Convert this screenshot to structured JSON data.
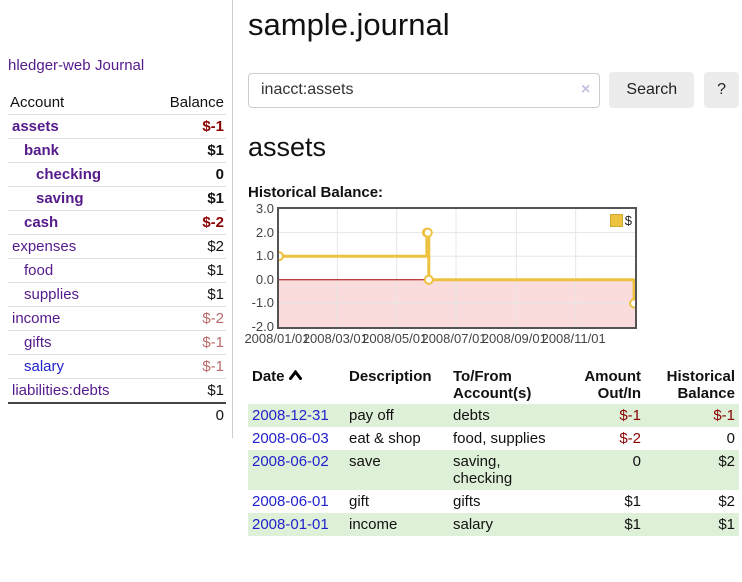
{
  "app": {
    "brand": "hledger-web"
  },
  "sidebar": {
    "nav_journal": "Journal",
    "accounts": {
      "headers": {
        "account": "Account",
        "balance": "Balance"
      },
      "rows": [
        {
          "name": "assets",
          "balance": "$-1"
        },
        {
          "name": "bank",
          "balance": "$1"
        },
        {
          "name": "checking",
          "balance": "0"
        },
        {
          "name": "saving",
          "balance": "$1"
        },
        {
          "name": "cash",
          "balance": "$-2"
        },
        {
          "name": "expenses",
          "balance": "$2"
        },
        {
          "name": "food",
          "balance": "$1"
        },
        {
          "name": "supplies",
          "balance": "$1"
        },
        {
          "name": "income",
          "balance": "$-2"
        },
        {
          "name": "gifts",
          "balance": "$-1"
        },
        {
          "name": "salary",
          "balance": "$-1"
        },
        {
          "name": "liabilities:debts",
          "balance": "$1"
        }
      ],
      "total": "0"
    }
  },
  "main": {
    "title": "sample.journal",
    "search": {
      "value": "inacct:assets",
      "clear": "×",
      "button": "Search",
      "help": "?"
    },
    "account_heading": "assets",
    "chart_label": "Historical Balance:"
  },
  "chart_data": {
    "type": "line",
    "title": "Historical Balance",
    "legend": [
      {
        "name": "$",
        "color": "#edc240"
      }
    ],
    "legend_position": "top-right",
    "grid": true,
    "step": true,
    "series": [
      {
        "name": "$",
        "color": "#edc240",
        "points": [
          {
            "date": "2008-01-01",
            "day": 0,
            "value": 1
          },
          {
            "date": "2008-06-01",
            "day": 152,
            "value": 2
          },
          {
            "date": "2008-06-02",
            "day": 153,
            "value": 2
          },
          {
            "date": "2008-06-03",
            "day": 154,
            "value": 0
          },
          {
            "date": "2008-12-31",
            "day": 365,
            "value": -1
          }
        ]
      }
    ],
    "x_ticks": [
      {
        "label": "2008/01/01",
        "day": 0
      },
      {
        "label": "2008/03/01",
        "day": 60
      },
      {
        "label": "2008/05/01",
        "day": 121
      },
      {
        "label": "2008/07/01",
        "day": 182
      },
      {
        "label": "2008/09/01",
        "day": 244
      },
      {
        "label": "2008/11/01",
        "day": 305
      }
    ],
    "x_domain_days": 366,
    "y_ticks": [
      "3.0",
      "2.0",
      "1.0",
      "0.0",
      "-1.0",
      "-2.0"
    ],
    "ylim": [
      -2,
      3
    ],
    "colors": {
      "gridline": "#e6e6e6",
      "border": "#545454",
      "zero_line": "#aa0000",
      "negative_region": "#fbdcdc",
      "marker_fill": "#ffffff"
    }
  },
  "register": {
    "headers": {
      "date": "Date",
      "description": "Description",
      "accounts": "To/From Account(s)",
      "amount": "Amount Out/In",
      "balance": "Historical Balance"
    },
    "rows": [
      {
        "date": "2008-12-31",
        "description": "pay off",
        "accounts": "debts",
        "amount": "$-1",
        "balance": "$-1"
      },
      {
        "date": "2008-06-03",
        "description": "eat & shop",
        "accounts": "food, supplies",
        "amount": "$-2",
        "balance": "0"
      },
      {
        "date": "2008-06-02",
        "description": "save",
        "accounts": "saving, checking",
        "amount": "0",
        "balance": "$2"
      },
      {
        "date": "2008-06-01",
        "description": "gift",
        "accounts": "gifts",
        "amount": "$1",
        "balance": "$2"
      },
      {
        "date": "2008-01-01",
        "description": "income",
        "accounts": "salary",
        "amount": "$1",
        "balance": "$1"
      }
    ]
  }
}
